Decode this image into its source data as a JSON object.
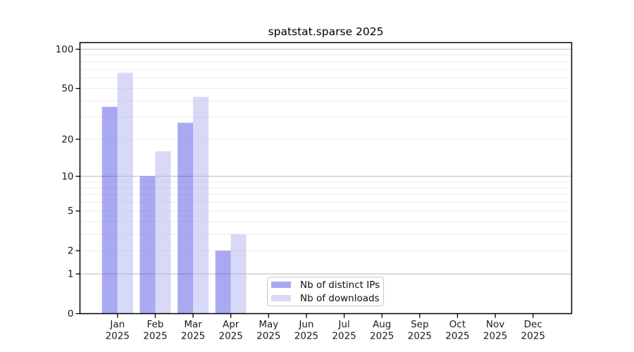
{
  "title": "spatstat.sparse 2025",
  "legend": {
    "items": [
      {
        "label": "Nb of distinct IPs",
        "swatch_color": "#a9a9f2"
      },
      {
        "label": "Nb of downloads",
        "swatch_color": "#d8d8f7"
      }
    ]
  },
  "colors": {
    "ips_bar": "rgba(72,72,228,0.47)",
    "downloads_bar": "rgba(178,178,240,0.5)",
    "major_gridline": "#c6c6c6",
    "minor_gridline": "#ededed",
    "axis": "#000000",
    "text": "#1a1a1a",
    "legend_border": "#c9c9c9",
    "background": "#ffffff"
  },
  "chart_data": {
    "type": "bar",
    "title": "spatstat.sparse 2025",
    "categories": [
      "Jan 2025",
      "Feb 2025",
      "Mar 2025",
      "Apr 2025",
      "May 2025",
      "Jun 2025",
      "Jul 2025",
      "Aug 2025",
      "Sep 2025",
      "Oct 2025",
      "Nov 2025",
      "Dec 2025"
    ],
    "series": [
      {
        "name": "Nb of distinct IPs",
        "values": [
          36,
          10,
          27,
          2,
          0,
          0,
          0,
          0,
          0,
          0,
          0,
          0
        ]
      },
      {
        "name": "Nb of downloads",
        "values": [
          66,
          16,
          43,
          3,
          0,
          0,
          0,
          0,
          0,
          0,
          0,
          0
        ]
      }
    ],
    "yscale": "log1p",
    "ylim": [
      0,
      100
    ],
    "ytick_values": [
      100,
      50,
      20,
      10,
      5,
      2,
      1,
      0
    ],
    "ytick_labels": [
      "100",
      "50",
      "20",
      "10",
      "5",
      "2",
      "1",
      "0"
    ],
    "major_gridlines": [
      1,
      10,
      100
    ],
    "minor_gridlines": [
      2,
      3,
      4,
      5,
      6,
      7,
      8,
      9,
      20,
      30,
      40,
      50,
      60,
      70,
      80,
      90
    ],
    "grid": true,
    "legend_position": "lower center inside",
    "xlabel": "",
    "ylabel": ""
  }
}
